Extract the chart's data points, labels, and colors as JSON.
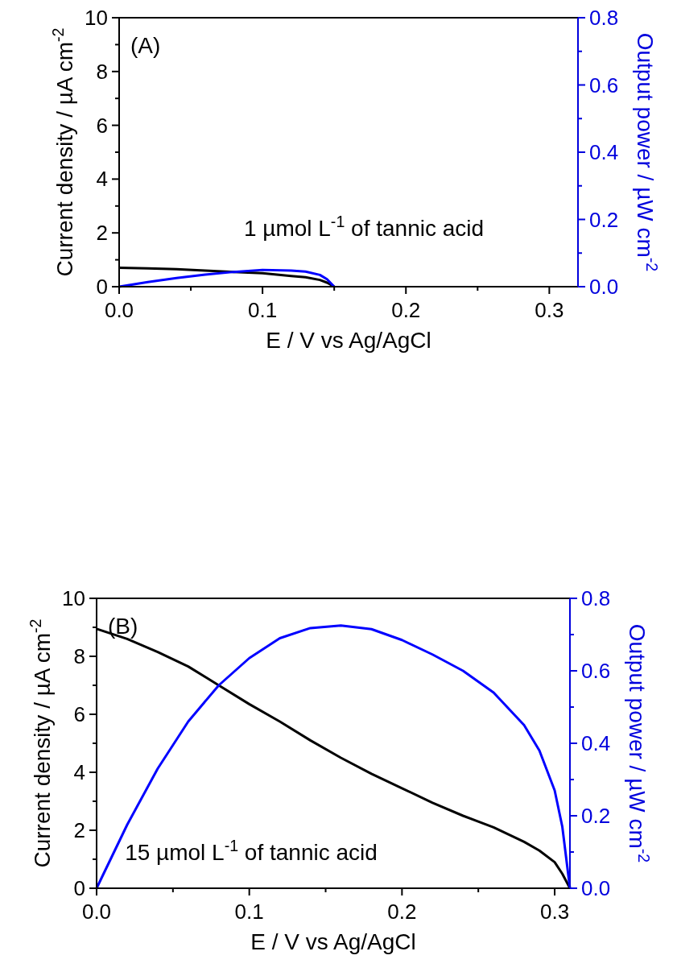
{
  "chart_data": [
    {
      "type": "line",
      "title": "(A)",
      "xlabel": "E / V vs Ag/AgCl",
      "ylabel": "Current density / µA cm$^{-2}$",
      "y2label": "Output power / µW cm$^{-2}$",
      "annotations": [
        "1 µmol L$^{-1}$ of tannic acid"
      ],
      "xlim": [
        0,
        0.32
      ],
      "xticks": [
        {
          "value": 0,
          "label": "0.0"
        },
        {
          "value": 0.05,
          "label": null
        },
        0.1,
        {
          "value": 0.15,
          "label": null
        },
        0.2,
        {
          "value": 0.25,
          "label": null
        },
        0.3
      ],
      "ylim": [
        0,
        10
      ],
      "yticks": [
        0,
        {
          "value": 1,
          "label": null
        },
        2,
        {
          "value": 3,
          "label": null
        },
        4,
        {
          "value": 5,
          "label": null
        },
        6,
        {
          "value": 7,
          "label": null
        },
        8,
        {
          "value": 9,
          "label": null
        },
        10
      ],
      "y2lim": [
        0,
        0.8
      ],
      "y2ticks": [
        {
          "value": 0,
          "label": "0.0"
        },
        {
          "value": 0.1,
          "label": null
        },
        0.2,
        {
          "value": 0.3,
          "label": null
        },
        0.4,
        {
          "value": 0.5,
          "label": null
        },
        0.6,
        {
          "value": 0.7,
          "label": null
        },
        0.8
      ],
      "grid": false,
      "series": [
        {
          "color": "#000000",
          "x": [
            0,
            0.02,
            0.04,
            0.06,
            0.08,
            0.1,
            0.12,
            0.13,
            0.14,
            0.145,
            0.15
          ],
          "values": [
            0.7,
            0.68,
            0.65,
            0.6,
            0.55,
            0.5,
            0.4,
            0.35,
            0.25,
            0.15,
            0
          ]
        },
        {
          "color": "#0000ff",
          "axis": "y2",
          "x": [
            0,
            0.02,
            0.04,
            0.06,
            0.08,
            0.1,
            0.12,
            0.13,
            0.14,
            0.145,
            0.15
          ],
          "values": [
            0,
            0.014,
            0.026,
            0.036,
            0.044,
            0.05,
            0.048,
            0.045,
            0.035,
            0.022,
            0
          ]
        }
      ]
    },
    {
      "type": "line",
      "title": "(B)",
      "xlabel": "E / V vs Ag/AgCl",
      "ylabel": "Current density / µA cm$^{-2}$",
      "y2label": "Output power / µW cm$^{-2}$",
      "annotations": [
        "15 µmol L$^{-1}$ of tannic acid"
      ],
      "xlim": [
        0,
        0.31
      ],
      "xticks": [
        {
          "value": 0,
          "label": "0.0"
        },
        {
          "value": 0.05,
          "label": null
        },
        0.1,
        {
          "value": 0.15,
          "label": null
        },
        0.2,
        {
          "value": 0.25,
          "label": null
        },
        0.3
      ],
      "ylim": [
        0,
        10
      ],
      "yticks": [
        0,
        {
          "value": 1,
          "label": null
        },
        2,
        {
          "value": 3,
          "label": null
        },
        4,
        {
          "value": 5,
          "label": null
        },
        6,
        {
          "value": 7,
          "label": null
        },
        8,
        {
          "value": 9,
          "label": null
        },
        10
      ],
      "y2lim": [
        0,
        0.8
      ],
      "y2ticks": [
        {
          "value": 0,
          "label": "0.0"
        },
        {
          "value": 0.1,
          "label": null
        },
        0.2,
        {
          "value": 0.3,
          "label": null
        },
        0.4,
        {
          "value": 0.5,
          "label": null
        },
        0.6,
        {
          "value": 0.7,
          "label": null
        },
        0.8
      ],
      "grid": false,
      "series": [
        {
          "color": "#000000",
          "x": [
            0,
            0.02,
            0.04,
            0.06,
            0.08,
            0.1,
            0.12,
            0.14,
            0.16,
            0.18,
            0.2,
            0.22,
            0.24,
            0.26,
            0.28,
            0.29,
            0.3,
            0.305,
            0.31
          ],
          "values": [
            8.95,
            8.6,
            8.15,
            7.65,
            7.0,
            6.35,
            5.75,
            5.1,
            4.5,
            3.95,
            3.45,
            2.95,
            2.5,
            2.1,
            1.6,
            1.3,
            0.9,
            0.5,
            0
          ]
        },
        {
          "color": "#0000ff",
          "axis": "y2",
          "x": [
            0,
            0.02,
            0.04,
            0.06,
            0.08,
            0.1,
            0.12,
            0.14,
            0.16,
            0.18,
            0.2,
            0.22,
            0.24,
            0.26,
            0.28,
            0.29,
            0.3,
            0.305,
            0.31
          ],
          "values": [
            0,
            0.175,
            0.33,
            0.46,
            0.56,
            0.635,
            0.69,
            0.718,
            0.725,
            0.715,
            0.685,
            0.645,
            0.6,
            0.54,
            0.45,
            0.38,
            0.27,
            0.17,
            0
          ]
        }
      ]
    }
  ]
}
